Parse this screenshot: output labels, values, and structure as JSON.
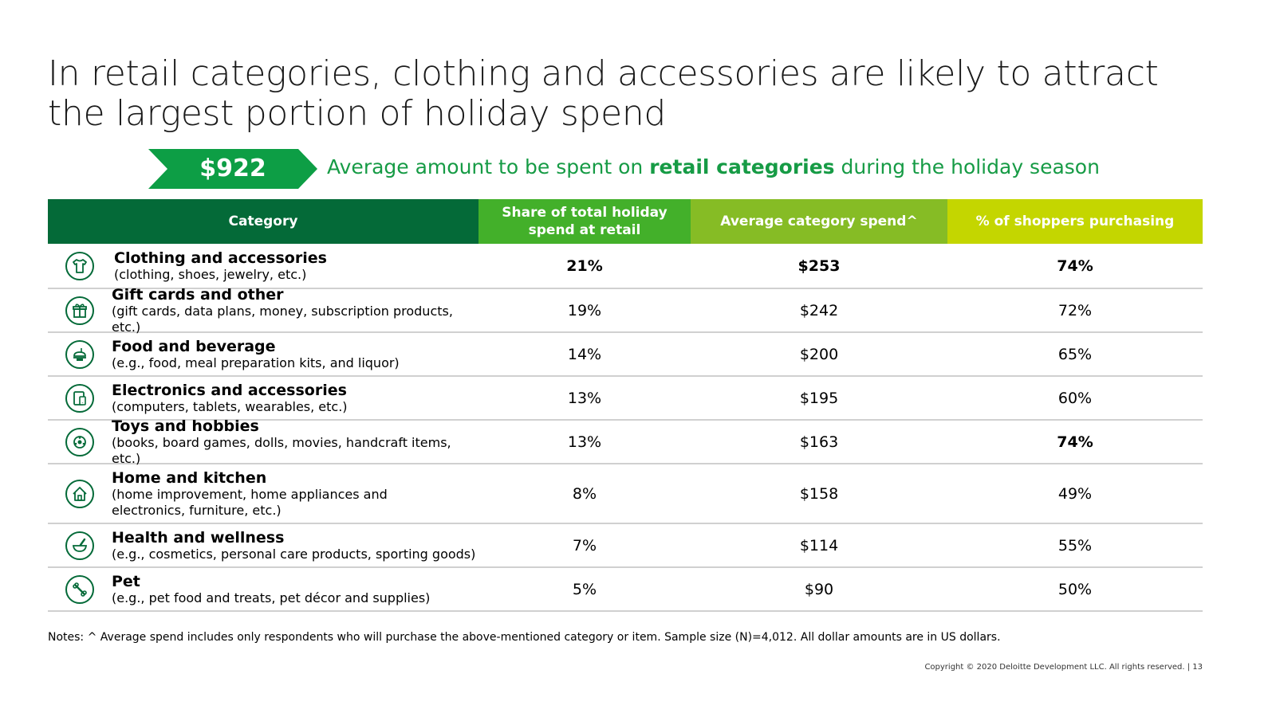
{
  "title": "In retail categories, clothing and accessories are likely to attract the largest portion of holiday spend",
  "callout": {
    "amount": "$922",
    "text_before": "Average amount to be spent on ",
    "text_bold": "retail categories",
    "text_after": " during the holiday season"
  },
  "table": {
    "headers": [
      "Category",
      "Share of total holiday spend at retail",
      "Average category spend^",
      "% of shoppers purchasing"
    ],
    "rows": [
      {
        "icon": "shirt-icon",
        "name": "Clothing and accessories",
        "desc": "(clothing, shoes, jewelry, etc.)",
        "share": "21%",
        "spend": "$253",
        "shoppers": "74%"
      },
      {
        "icon": "gift-icon",
        "name": "Gift cards and other",
        "desc": "(gift cards, data plans, money, subscription products, etc.)",
        "share": "19%",
        "spend": "$242",
        "shoppers": "72%"
      },
      {
        "icon": "food-icon",
        "name": "Food and beverage",
        "desc": "(e.g., food, meal preparation kits, and liquor)",
        "share": "14%",
        "spend": "$200",
        "shoppers": "65%"
      },
      {
        "icon": "devices-icon",
        "name": "Electronics and accessories",
        "desc": "(computers, tablets, wearables, etc.)",
        "share": "13%",
        "spend": "$195",
        "shoppers": "60%"
      },
      {
        "icon": "toys-icon",
        "name": "Toys and hobbies",
        "desc": "(books, board games, dolls, movies, handcraft items, etc.)",
        "share": "13%",
        "spend": "$163",
        "shoppers": "74%"
      },
      {
        "icon": "home-icon",
        "name": "Home and kitchen",
        "desc": "(home improvement, home appliances and electronics, furniture, etc.)",
        "share": "8%",
        "spend": "$158",
        "shoppers": "49%"
      },
      {
        "icon": "mortar-pestle-icon",
        "name": "Health and wellness",
        "desc": "(e.g., cosmetics, personal care products, sporting goods)",
        "share": "7%",
        "spend": "$114",
        "shoppers": "55%"
      },
      {
        "icon": "bone-icon",
        "name": "Pet",
        "desc": "(e.g., pet food and treats, pet décor and supplies)",
        "share": "5%",
        "spend": "$90",
        "shoppers": "50%"
      }
    ]
  },
  "notes": "Notes: ^ Average spend includes only respondents who will purchase the above-mentioned category or item. Sample size (N)=4,012. All dollar amounts are in US dollars.",
  "footer": "Copyright © 2020 Deloitte Development LLC. All rights reserved.   |   13",
  "colors": {
    "dark_green": "#046a38",
    "green": "#43b02a",
    "light_green": "#86bc25",
    "lime": "#c4d600",
    "accent": "#0d9e45"
  }
}
